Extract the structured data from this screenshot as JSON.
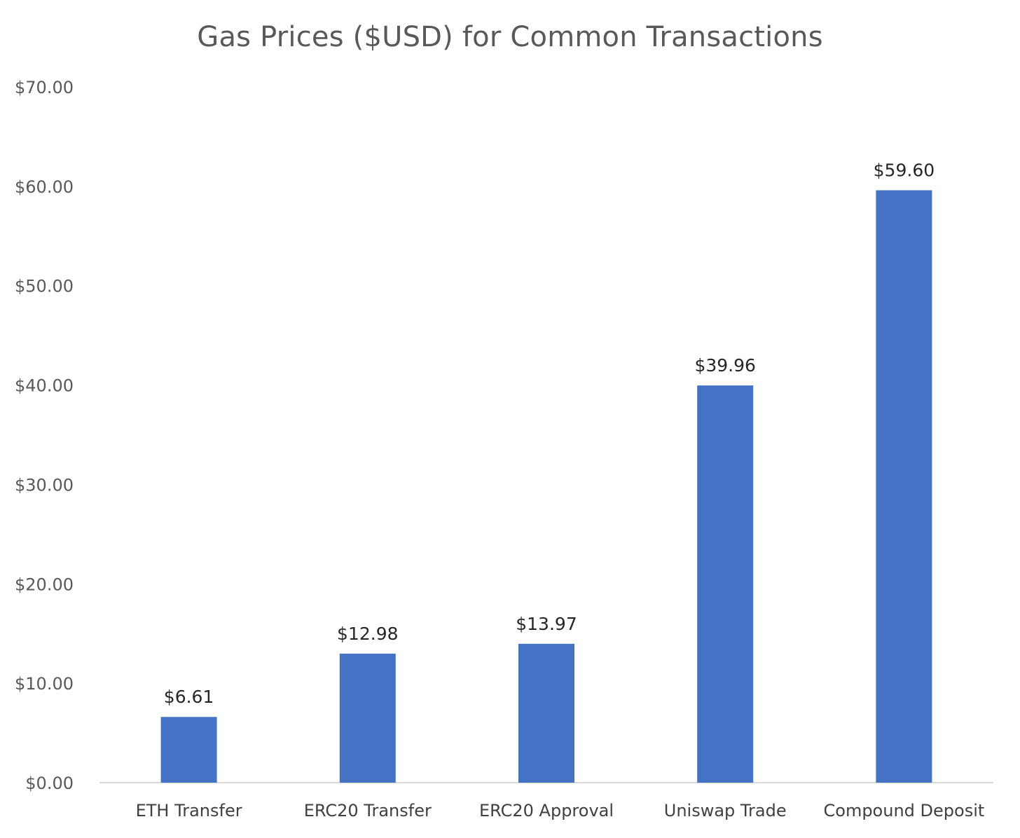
{
  "chart_data": {
    "type": "bar",
    "title": "Gas Prices ($USD) for Common Transactions",
    "xlabel": "",
    "ylabel": "",
    "categories": [
      "ETH Transfer",
      "ERC20 Transfer",
      "ERC20 Approval",
      "Uniswap Trade",
      "Compound Deposit"
    ],
    "values": [
      6.61,
      12.98,
      13.97,
      39.96,
      59.6
    ],
    "data_labels": [
      "$6.61",
      "$12.98",
      "$13.97",
      "$39.96",
      "$59.60"
    ],
    "ylim": [
      0,
      70
    ],
    "y_ticks": [
      0,
      10,
      20,
      30,
      40,
      50,
      60,
      70
    ],
    "y_tick_labels": [
      "$0.00",
      "$10.00",
      "$20.00",
      "$30.00",
      "$40.00",
      "$50.00",
      "$60.00",
      "$70.00"
    ],
    "grid": false,
    "legend": "none",
    "bar_color": "#4472C4"
  }
}
